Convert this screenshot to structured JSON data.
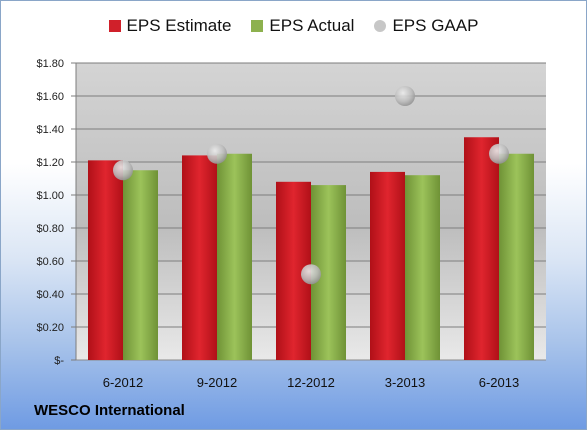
{
  "chart_data": {
    "type": "bar",
    "categories": [
      "6-2012",
      "9-2012",
      "12-2012",
      "3-2013",
      "6-2013"
    ],
    "series": [
      {
        "name": "EPS Estimate",
        "kind": "bar",
        "color": "#d0202a",
        "values": [
          1.21,
          1.24,
          1.08,
          1.14,
          1.35
        ]
      },
      {
        "name": "EPS Actual",
        "kind": "bar",
        "color": "#8db14e",
        "values": [
          1.15,
          1.25,
          1.06,
          1.12,
          1.25
        ]
      },
      {
        "name": "EPS GAAP",
        "kind": "marker",
        "color": "#c7c7c7",
        "values": [
          1.15,
          1.25,
          0.52,
          1.6,
          1.25
        ]
      }
    ],
    "y_ticks": [
      "$-",
      "$0.20",
      "$0.40",
      "$0.60",
      "$0.80",
      "$1.00",
      "$1.20",
      "$1.40",
      "$1.60",
      "$1.80"
    ],
    "ylim": [
      0,
      1.8
    ],
    "grid": true,
    "legend_position": "top",
    "footer": "WESCO International"
  }
}
